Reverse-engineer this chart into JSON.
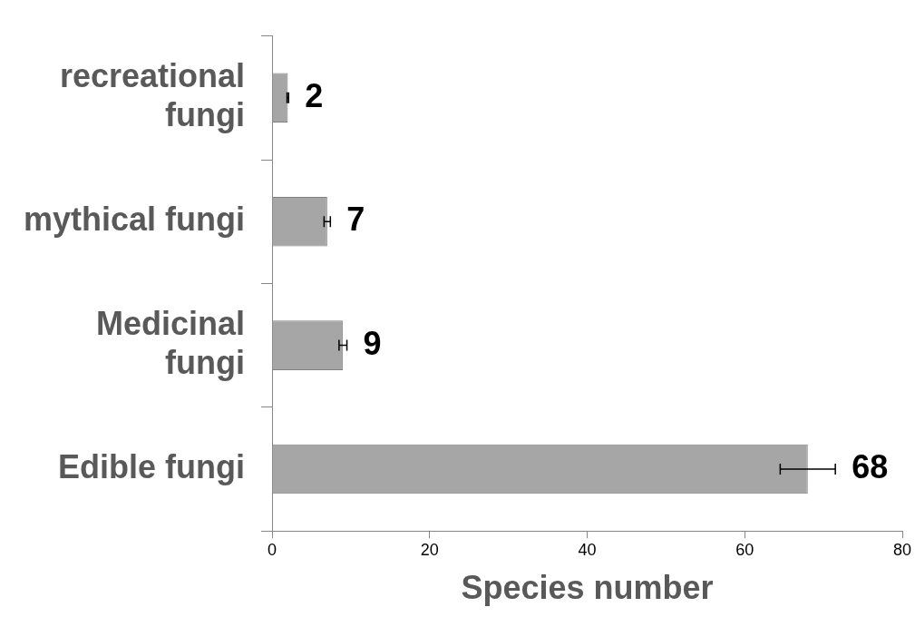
{
  "chart_data": {
    "type": "bar",
    "orientation": "horizontal",
    "xlabel": "Species number",
    "categories": [
      "recreational fungi",
      "mythical fungi",
      "Medicinal fungi",
      "Edible fungi"
    ],
    "values": [
      2,
      7,
      9,
      68
    ],
    "errors": [
      0.1,
      0.4,
      0.5,
      3.5
    ],
    "color": "#a6a6a6",
    "xlim": [
      0,
      80
    ],
    "xticks": [
      0,
      20,
      40,
      60,
      80
    ],
    "grid": false,
    "legend": false,
    "data_labels": true
  }
}
